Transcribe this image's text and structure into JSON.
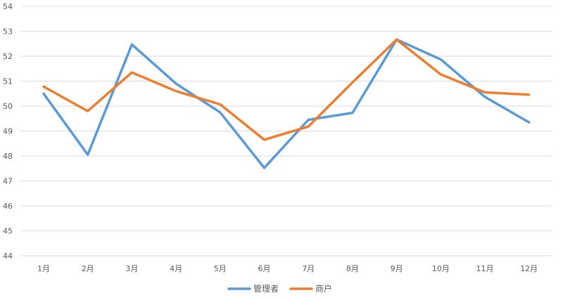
{
  "chart_data": {
    "type": "line",
    "categories": [
      "1月",
      "2月",
      "3月",
      "4月",
      "5月",
      "6月",
      "7月",
      "8月",
      "9月",
      "10月",
      "11月",
      "12月"
    ],
    "series": [
      {
        "name": "管理者",
        "color": "#5B9BD5",
        "values": [
          50.5,
          48.05,
          52.47,
          50.9,
          49.75,
          47.52,
          49.45,
          49.73,
          52.67,
          51.87,
          50.37,
          49.35
        ]
      },
      {
        "name": "商户",
        "color": "#ED7D31",
        "values": [
          50.78,
          49.8,
          51.35,
          50.6,
          50.07,
          48.65,
          49.18,
          50.95,
          52.67,
          51.27,
          50.55,
          50.46
        ]
      }
    ],
    "ylim": [
      44,
      54
    ],
    "yticks": [
      "44",
      "45",
      "46",
      "47",
      "48",
      "49",
      "50",
      "51",
      "52",
      "53",
      "54"
    ],
    "grid": true,
    "legend_position": "bottom"
  }
}
